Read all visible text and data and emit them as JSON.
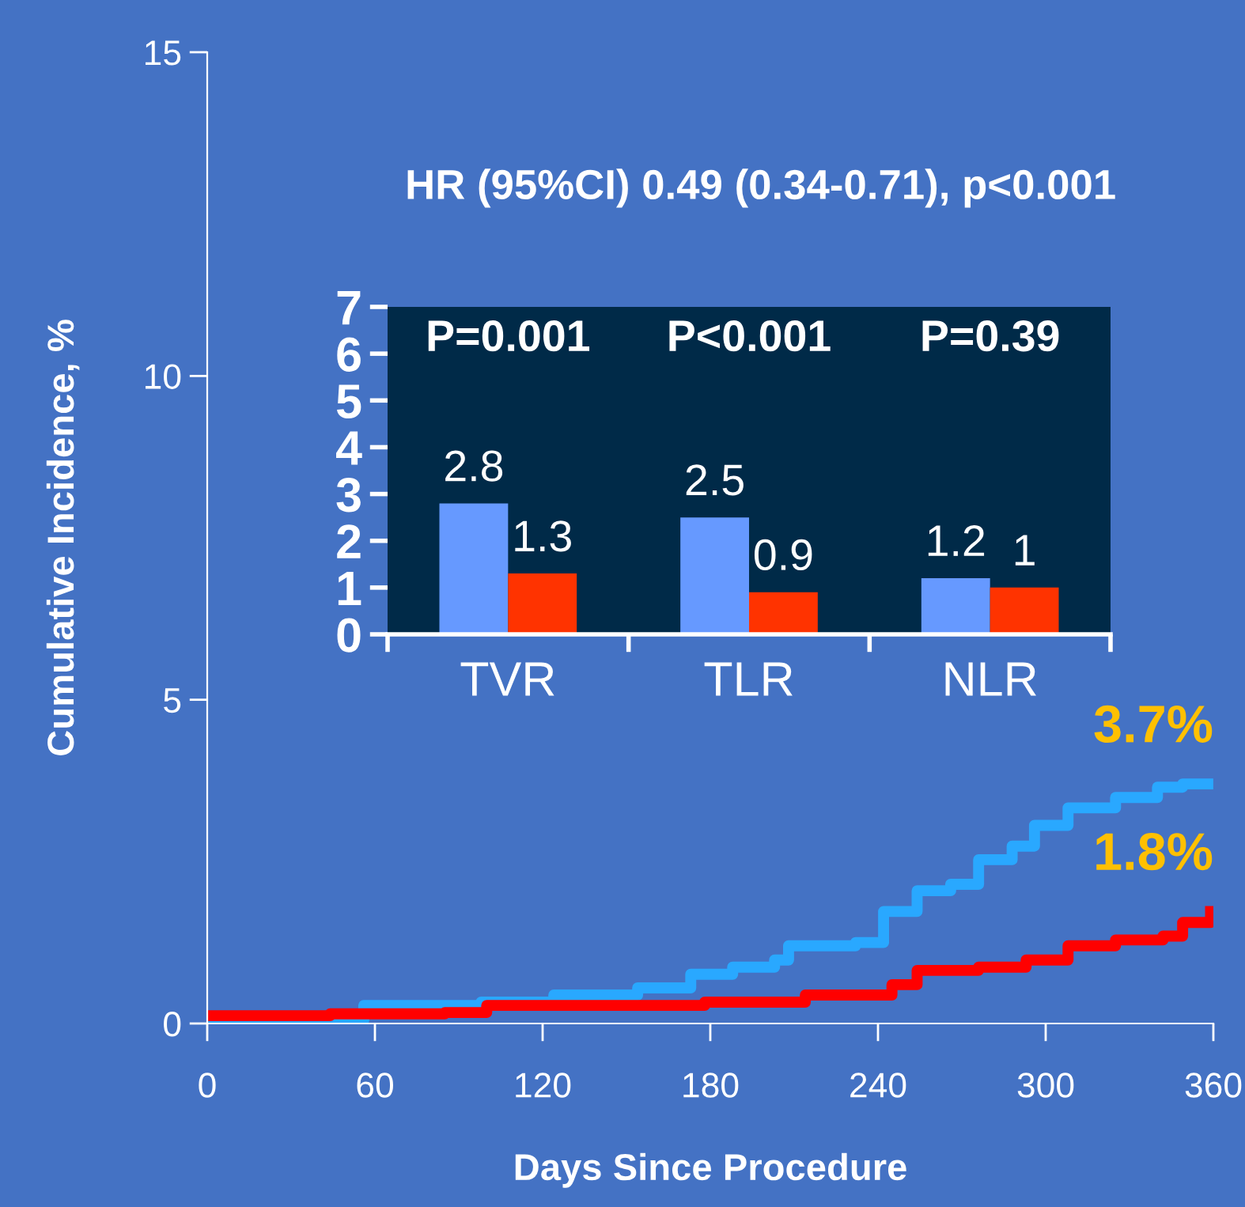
{
  "chart_data": [
    {
      "type": "step",
      "xlabel": "Days Since Procedure",
      "ylabel": "Cumulative Incidence, %",
      "xlim": [
        0,
        360
      ],
      "ylim": [
        0,
        15
      ],
      "xticks": [
        0,
        60,
        120,
        180,
        240,
        300,
        360
      ],
      "yticks": [
        0,
        5,
        10,
        15
      ],
      "grid": false,
      "annotations": [
        "HR (95%CI) 0.49 (0.34-0.71), p<0.001",
        {
          "text": "3.7%",
          "x": 360,
          "y": 3.7
        },
        {
          "text": "1.8%",
          "x": 360,
          "y": 1.73
        }
      ],
      "series": [
        {
          "color": "#29a8ff",
          "x": [
            0,
            56,
            98,
            124,
            154,
            173,
            188,
            203,
            208,
            232,
            242,
            254,
            266,
            276,
            288,
            296,
            308,
            325,
            340,
            349,
            358
          ],
          "values": [
            0.05,
            0.28,
            0.33,
            0.44,
            0.55,
            0.76,
            0.87,
            0.98,
            1.2,
            1.25,
            1.73,
            2.05,
            2.15,
            2.53,
            2.74,
            3.06,
            3.33,
            3.49,
            3.65,
            3.7,
            3.7
          ]
        },
        {
          "color": "#ff0000",
          "x": [
            0,
            44,
            85,
            100,
            178,
            214,
            245,
            254,
            276,
            293,
            308,
            325,
            342,
            349,
            359
          ],
          "values": [
            0.12,
            0.15,
            0.17,
            0.28,
            0.33,
            0.44,
            0.6,
            0.82,
            0.87,
            0.98,
            1.2,
            1.29,
            1.35,
            1.56,
            1.73
          ]
        }
      ]
    },
    {
      "type": "bar",
      "categories": [
        "TVR",
        "TLR",
        "NLR"
      ],
      "ylim": [
        0,
        7
      ],
      "yticks": [
        0,
        1,
        2,
        3,
        4,
        5,
        6,
        7
      ],
      "data_labels": true,
      "grid": false,
      "annotations": [
        "P=0.001",
        "P<0.001",
        "P=0.39"
      ],
      "series": [
        {
          "color": "#6699ff",
          "values": [
            2.8,
            2.5,
            1.2
          ]
        },
        {
          "color": "#ff3300",
          "values": [
            1.3,
            0.9,
            1.0
          ]
        }
      ]
    }
  ]
}
